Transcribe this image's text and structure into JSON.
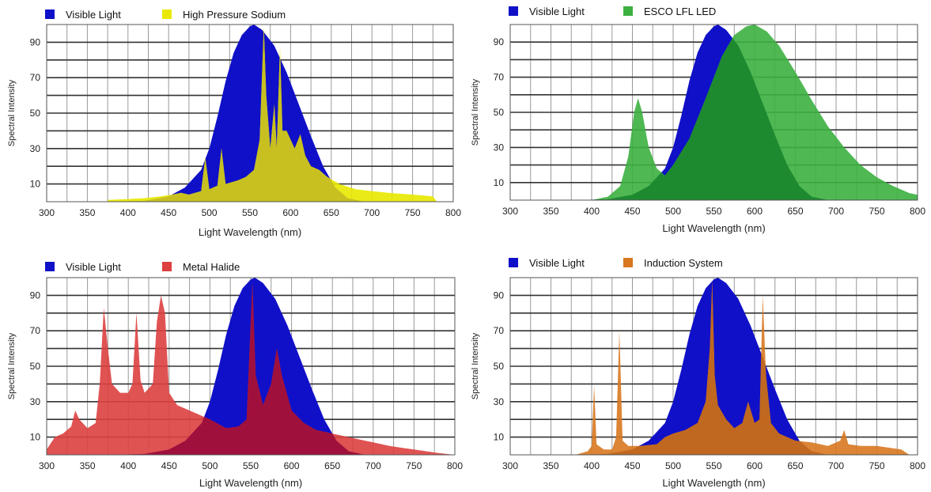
{
  "chart_data": [
    {
      "type": "area",
      "legend": [
        "Visible Light",
        "High Pressure Sodium"
      ],
      "colors": {
        "visible": "#1010c8",
        "lamp": "#e8e800",
        "overlap": "#c8c020"
      },
      "xlabel": "Light Wavelength (nm)",
      "ylabel": "Spectral Intensity",
      "xlim": [
        300,
        800
      ],
      "ylim": [
        0,
        100
      ],
      "x_ticks": [
        "300",
        "350",
        "400",
        "450",
        "500",
        "550",
        "600",
        "650",
        "700",
        "750",
        "800"
      ],
      "y_ticks": [
        "10",
        "30",
        "50",
        "70",
        "90"
      ],
      "series": [
        {
          "name": "Visible Light",
          "points": [
            [
              380,
              0
            ],
            [
              420,
              0.5
            ],
            [
              450,
              3
            ],
            [
              470,
              8
            ],
            [
              490,
              18
            ],
            [
              500,
              30
            ],
            [
              510,
              48
            ],
            [
              520,
              68
            ],
            [
              530,
              84
            ],
            [
              540,
              94
            ],
            [
              550,
              99
            ],
            [
              555,
              100
            ],
            [
              565,
              97
            ],
            [
              580,
              88
            ],
            [
              595,
              73
            ],
            [
              610,
              55
            ],
            [
              625,
              37
            ],
            [
              640,
              20
            ],
            [
              655,
              8
            ],
            [
              670,
              2
            ],
            [
              690,
              0
            ]
          ]
        },
        {
          "name": "High Pressure Sodium",
          "points": [
            [
              375,
              1
            ],
            [
              400,
              1.5
            ],
            [
              420,
              2
            ],
            [
              440,
              3
            ],
            [
              455,
              4
            ],
            [
              465,
              5
            ],
            [
              475,
              4
            ],
            [
              490,
              6
            ],
            [
              495,
              25
            ],
            [
              500,
              7
            ],
            [
              510,
              9
            ],
            [
              515,
              30
            ],
            [
              520,
              10
            ],
            [
              535,
              12
            ],
            [
              545,
              14
            ],
            [
              555,
              18
            ],
            [
              562,
              35
            ],
            [
              567,
              99
            ],
            [
              570,
              60
            ],
            [
              575,
              30
            ],
            [
              580,
              55
            ],
            [
              583,
              30
            ],
            [
              587,
              88
            ],
            [
              590,
              40
            ],
            [
              595,
              40
            ],
            [
              600,
              35
            ],
            [
              605,
              30
            ],
            [
              612,
              38
            ],
            [
              618,
              26
            ],
            [
              625,
              20
            ],
            [
              635,
              18
            ],
            [
              645,
              14
            ],
            [
              660,
              10
            ],
            [
              680,
              7
            ],
            [
              700,
              6
            ],
            [
              720,
              5
            ],
            [
              750,
              4
            ],
            [
              775,
              3
            ],
            [
              780,
              0
            ]
          ]
        }
      ]
    },
    {
      "type": "area",
      "legend": [
        "Visible Light",
        "ESCO LFL LED"
      ],
      "colors": {
        "visible": "#1010c8",
        "lamp": "#3cb040",
        "overlap": "#1e8a30"
      },
      "xlabel": "Light Wavelength (nm)",
      "ylabel": "Spectral Intensity",
      "xlim": [
        300,
        800
      ],
      "ylim": [
        0,
        100
      ],
      "x_ticks": [
        "300",
        "350",
        "400",
        "450",
        "500",
        "550",
        "600",
        "650",
        "700",
        "750",
        "800"
      ],
      "y_ticks": [
        "10",
        "30",
        "50",
        "70",
        "90"
      ],
      "series": [
        {
          "name": "Visible Light",
          "points": [
            [
              380,
              0
            ],
            [
              420,
              0.5
            ],
            [
              450,
              3
            ],
            [
              470,
              8
            ],
            [
              490,
              18
            ],
            [
              500,
              30
            ],
            [
              510,
              48
            ],
            [
              520,
              68
            ],
            [
              530,
              84
            ],
            [
              540,
              94
            ],
            [
              550,
              99
            ],
            [
              555,
              100
            ],
            [
              565,
              97
            ],
            [
              580,
              88
            ],
            [
              595,
              73
            ],
            [
              610,
              55
            ],
            [
              625,
              37
            ],
            [
              640,
              20
            ],
            [
              655,
              8
            ],
            [
              670,
              2
            ],
            [
              690,
              0
            ]
          ]
        },
        {
          "name": "ESCO LFL LED",
          "points": [
            [
              400,
              0
            ],
            [
              420,
              2
            ],
            [
              435,
              8
            ],
            [
              445,
              25
            ],
            [
              452,
              50
            ],
            [
              457,
              58
            ],
            [
              462,
              50
            ],
            [
              470,
              30
            ],
            [
              480,
              18
            ],
            [
              490,
              14
            ],
            [
              500,
              20
            ],
            [
              520,
              35
            ],
            [
              540,
              58
            ],
            [
              560,
              82
            ],
            [
              575,
              94
            ],
            [
              590,
              99
            ],
            [
              600,
              100
            ],
            [
              615,
              96
            ],
            [
              630,
              88
            ],
            [
              650,
              73
            ],
            [
              670,
              57
            ],
            [
              690,
              42
            ],
            [
              710,
              30
            ],
            [
              730,
              20
            ],
            [
              750,
              13
            ],
            [
              770,
              8
            ],
            [
              790,
              4
            ],
            [
              800,
              3
            ]
          ]
        }
      ]
    },
    {
      "type": "area",
      "legend": [
        "Visible Light",
        "Metal Halide"
      ],
      "colors": {
        "visible": "#1010c8",
        "lamp": "#dd4040",
        "overlap": "#a0103c"
      },
      "xlabel": "Light Wavelength (nm)",
      "ylabel": "Spectral Intensity",
      "xlim": [
        300,
        800
      ],
      "ylim": [
        0,
        100
      ],
      "x_ticks": [
        "300",
        "350",
        "400",
        "450",
        "500",
        "550",
        "600",
        "650",
        "700",
        "750",
        "800"
      ],
      "y_ticks": [
        "10",
        "30",
        "50",
        "70",
        "90"
      ],
      "series": [
        {
          "name": "Visible Light",
          "points": [
            [
              380,
              0
            ],
            [
              420,
              0.5
            ],
            [
              450,
              3
            ],
            [
              470,
              8
            ],
            [
              490,
              18
            ],
            [
              500,
              30
            ],
            [
              510,
              48
            ],
            [
              520,
              68
            ],
            [
              530,
              84
            ],
            [
              540,
              94
            ],
            [
              550,
              99
            ],
            [
              555,
              100
            ],
            [
              565,
              97
            ],
            [
              580,
              88
            ],
            [
              595,
              73
            ],
            [
              610,
              55
            ],
            [
              625,
              37
            ],
            [
              640,
              20
            ],
            [
              655,
              8
            ],
            [
              670,
              2
            ],
            [
              690,
              0
            ]
          ]
        },
        {
          "name": "Metal Halide",
          "points": [
            [
              300,
              3
            ],
            [
              310,
              10
            ],
            [
              320,
              12
            ],
            [
              330,
              16
            ],
            [
              335,
              25
            ],
            [
              340,
              20
            ],
            [
              350,
              15
            ],
            [
              360,
              18
            ],
            [
              365,
              40
            ],
            [
              370,
              83
            ],
            [
              375,
              60
            ],
            [
              380,
              40
            ],
            [
              390,
              35
            ],
            [
              400,
              35
            ],
            [
              405,
              40
            ],
            [
              410,
              80
            ],
            [
              415,
              42
            ],
            [
              420,
              35
            ],
            [
              430,
              40
            ],
            [
              435,
              75
            ],
            [
              440,
              90
            ],
            [
              445,
              80
            ],
            [
              450,
              35
            ],
            [
              460,
              28
            ],
            [
              475,
              25
            ],
            [
              490,
              22
            ],
            [
              500,
              20
            ],
            [
              520,
              15
            ],
            [
              535,
              16
            ],
            [
              545,
              20
            ],
            [
              552,
              97
            ],
            [
              556,
              45
            ],
            [
              565,
              28
            ],
            [
              575,
              40
            ],
            [
              582,
              60
            ],
            [
              588,
              45
            ],
            [
              600,
              25
            ],
            [
              615,
              18
            ],
            [
              630,
              14
            ],
            [
              650,
              12
            ],
            [
              670,
              10
            ],
            [
              690,
              8
            ],
            [
              700,
              7
            ],
            [
              720,
              5
            ],
            [
              750,
              3
            ],
            [
              780,
              1
            ],
            [
              800,
              0
            ]
          ]
        }
      ]
    },
    {
      "type": "area",
      "legend": [
        "Visible Light",
        "Induction System"
      ],
      "colors": {
        "visible": "#1010c8",
        "lamp": "#d87820",
        "overlap": "#c06820"
      },
      "xlabel": "Light Wavelength (nm)",
      "ylabel": "Spectral Intensity",
      "xlim": [
        300,
        800
      ],
      "ylim": [
        0,
        100
      ],
      "x_ticks": [
        "300",
        "350",
        "400",
        "450",
        "500",
        "550",
        "600",
        "650",
        "700",
        "750",
        "800"
      ],
      "y_ticks": [
        "10",
        "30",
        "50",
        "70",
        "90"
      ],
      "series": [
        {
          "name": "Visible Light",
          "points": [
            [
              380,
              0
            ],
            [
              420,
              0.5
            ],
            [
              450,
              3
            ],
            [
              470,
              8
            ],
            [
              490,
              18
            ],
            [
              500,
              30
            ],
            [
              510,
              48
            ],
            [
              520,
              68
            ],
            [
              530,
              84
            ],
            [
              540,
              94
            ],
            [
              550,
              99
            ],
            [
              555,
              100
            ],
            [
              565,
              97
            ],
            [
              580,
              88
            ],
            [
              595,
              73
            ],
            [
              610,
              55
            ],
            [
              625,
              37
            ],
            [
              640,
              20
            ],
            [
              655,
              8
            ],
            [
              670,
              2
            ],
            [
              690,
              0
            ]
          ]
        },
        {
          "name": "Induction System",
          "points": [
            [
              380,
              0
            ],
            [
              395,
              2
            ],
            [
              400,
              5
            ],
            [
              403,
              39
            ],
            [
              406,
              6
            ],
            [
              415,
              3
            ],
            [
              425,
              3
            ],
            [
              430,
              10
            ],
            [
              434,
              70
            ],
            [
              438,
              8
            ],
            [
              445,
              5
            ],
            [
              460,
              5
            ],
            [
              480,
              6
            ],
            [
              490,
              10
            ],
            [
              500,
              12
            ],
            [
              515,
              14
            ],
            [
              530,
              18
            ],
            [
              540,
              30
            ],
            [
              545,
              60
            ],
            [
              548,
              98
            ],
            [
              551,
              45
            ],
            [
              555,
              28
            ],
            [
              565,
              20
            ],
            [
              575,
              15
            ],
            [
              585,
              18
            ],
            [
              592,
              30
            ],
            [
              600,
              18
            ],
            [
              606,
              20
            ],
            [
              610,
              90
            ],
            [
              614,
              45
            ],
            [
              620,
              18
            ],
            [
              630,
              12
            ],
            [
              650,
              8
            ],
            [
              670,
              7
            ],
            [
              690,
              5
            ],
            [
              705,
              8
            ],
            [
              710,
              14
            ],
            [
              715,
              6
            ],
            [
              730,
              5
            ],
            [
              750,
              5
            ],
            [
              765,
              4
            ],
            [
              780,
              3
            ],
            [
              790,
              0
            ]
          ]
        }
      ]
    }
  ]
}
